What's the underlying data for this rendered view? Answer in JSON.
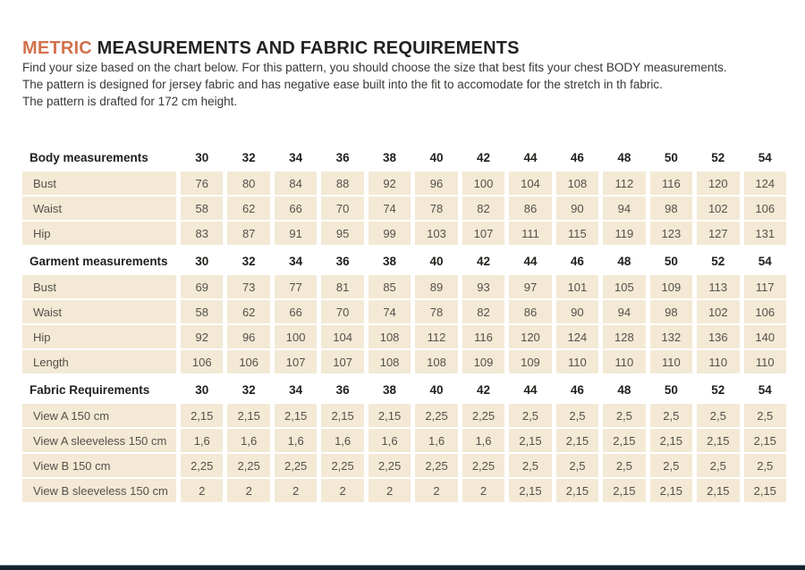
{
  "title": {
    "highlight": "METRIC",
    "rest": " MEASUREMENTS AND FABRIC REQUIREMENTS"
  },
  "intro": [
    "Find your size based on the chart below. For this pattern, you should choose the size that best fits your chest BODY measurements.",
    "The pattern is designed for jersey fabric and has negative ease built into the fit to accomodate for the stretch in th fabric.",
    "The pattern is drafted for 172 cm height."
  ],
  "table": {
    "sizes": [
      "30",
      "32",
      "34",
      "36",
      "38",
      "40",
      "42",
      "44",
      "46",
      "48",
      "50",
      "52",
      "54"
    ],
    "sections": [
      {
        "header": "Body measurements",
        "rows": [
          {
            "label": "Bust",
            "values": [
              "76",
              "80",
              "84",
              "88",
              "92",
              "96",
              "100",
              "104",
              "108",
              "112",
              "116",
              "120",
              "124"
            ]
          },
          {
            "label": "Waist",
            "values": [
              "58",
              "62",
              "66",
              "70",
              "74",
              "78",
              "82",
              "86",
              "90",
              "94",
              "98",
              "102",
              "106"
            ]
          },
          {
            "label": "Hip",
            "values": [
              "83",
              "87",
              "91",
              "95",
              "99",
              "103",
              "107",
              "111",
              "115",
              "119",
              "123",
              "127",
              "131"
            ]
          }
        ]
      },
      {
        "header": "Garment measurements",
        "rows": [
          {
            "label": "Bust",
            "values": [
              "69",
              "73",
              "77",
              "81",
              "85",
              "89",
              "93",
              "97",
              "101",
              "105",
              "109",
              "113",
              "117"
            ]
          },
          {
            "label": "Waist",
            "values": [
              "58",
              "62",
              "66",
              "70",
              "74",
              "78",
              "82",
              "86",
              "90",
              "94",
              "98",
              "102",
              "106"
            ]
          },
          {
            "label": "Hip",
            "values": [
              "92",
              "96",
              "100",
              "104",
              "108",
              "112",
              "116",
              "120",
              "124",
              "128",
              "132",
              "136",
              "140"
            ]
          },
          {
            "label": "Length",
            "values": [
              "106",
              "106",
              "107",
              "107",
              "108",
              "108",
              "109",
              "109",
              "110",
              "110",
              "110",
              "110",
              "110"
            ]
          }
        ]
      },
      {
        "header": "Fabric Requirements",
        "rows": [
          {
            "label": "View A 150 cm",
            "values": [
              "2,15",
              "2,15",
              "2,15",
              "2,15",
              "2,15",
              "2,25",
              "2,25",
              "2,5",
              "2,5",
              "2,5",
              "2,5",
              "2,5",
              "2,5"
            ]
          },
          {
            "label": "View A sleeveless 150 cm",
            "values": [
              "1,6",
              "1,6",
              "1,6",
              "1,6",
              "1,6",
              "1,6",
              "1,6",
              "2,15",
              "2,15",
              "2,15",
              "2,15",
              "2,15",
              "2,15"
            ]
          },
          {
            "label": "View B 150 cm",
            "values": [
              "2,25",
              "2,25",
              "2,25",
              "2,25",
              "2,25",
              "2,25",
              "2,25",
              "2,5",
              "2,5",
              "2,5",
              "2,5",
              "2,5",
              "2,5"
            ]
          },
          {
            "label": "View B sleeveless 150 cm",
            "values": [
              "2",
              "2",
              "2",
              "2",
              "2",
              "2",
              "2",
              "2,15",
              "2,15",
              "2,15",
              "2,15",
              "2,15",
              "2,15"
            ]
          }
        ]
      }
    ]
  },
  "colors": {
    "accent": "#d2714d",
    "cell_background": "#f3e9d5",
    "heading_text": "#242220",
    "body_text": "#3b3835",
    "footer_bar": "#15222e"
  }
}
